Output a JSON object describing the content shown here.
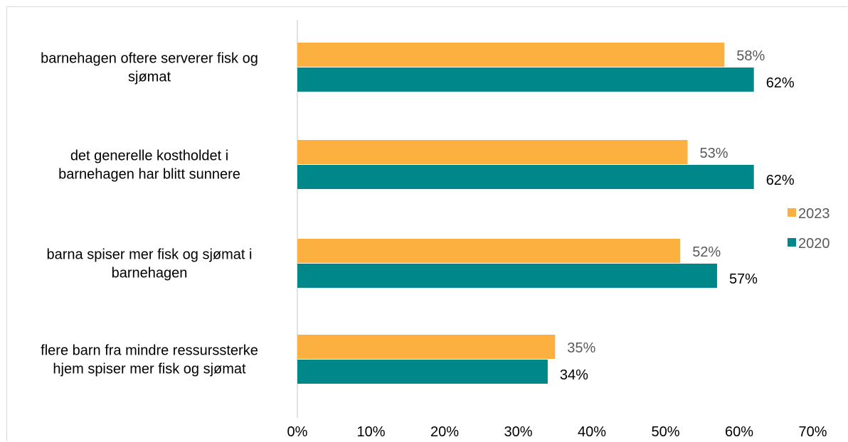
{
  "chart_data": {
    "type": "bar",
    "orientation": "horizontal",
    "categories": [
      [
        "barnehagen oftere serverer fisk og",
        "sjømat"
      ],
      [
        "det generelle kostholdet i",
        "barnehagen har blitt sunnere"
      ],
      [
        "barna spiser mer fisk og sjømat i",
        "barnehagen"
      ],
      [
        "flere barn fra mindre ressurssterke",
        "hjem spiser mer fisk og sjømat"
      ]
    ],
    "series": [
      {
        "name": "2023",
        "color": "#fbb040",
        "values": [
          58,
          53,
          52,
          35
        ],
        "labels": [
          "58%",
          "53%",
          "52%",
          "35%"
        ],
        "label_color": "#595959"
      },
      {
        "name": "2020",
        "color": "#00878a",
        "values": [
          62,
          62,
          57,
          34
        ],
        "labels": [
          "62%",
          "62%",
          "57%",
          "34%"
        ],
        "label_color": "#000000"
      }
    ],
    "xlim": [
      0,
      70
    ],
    "xticks": [
      "0%",
      "10%",
      "20%",
      "30%",
      "40%",
      "50%",
      "60%",
      "70%"
    ],
    "grid": false,
    "legend_position": "right"
  }
}
